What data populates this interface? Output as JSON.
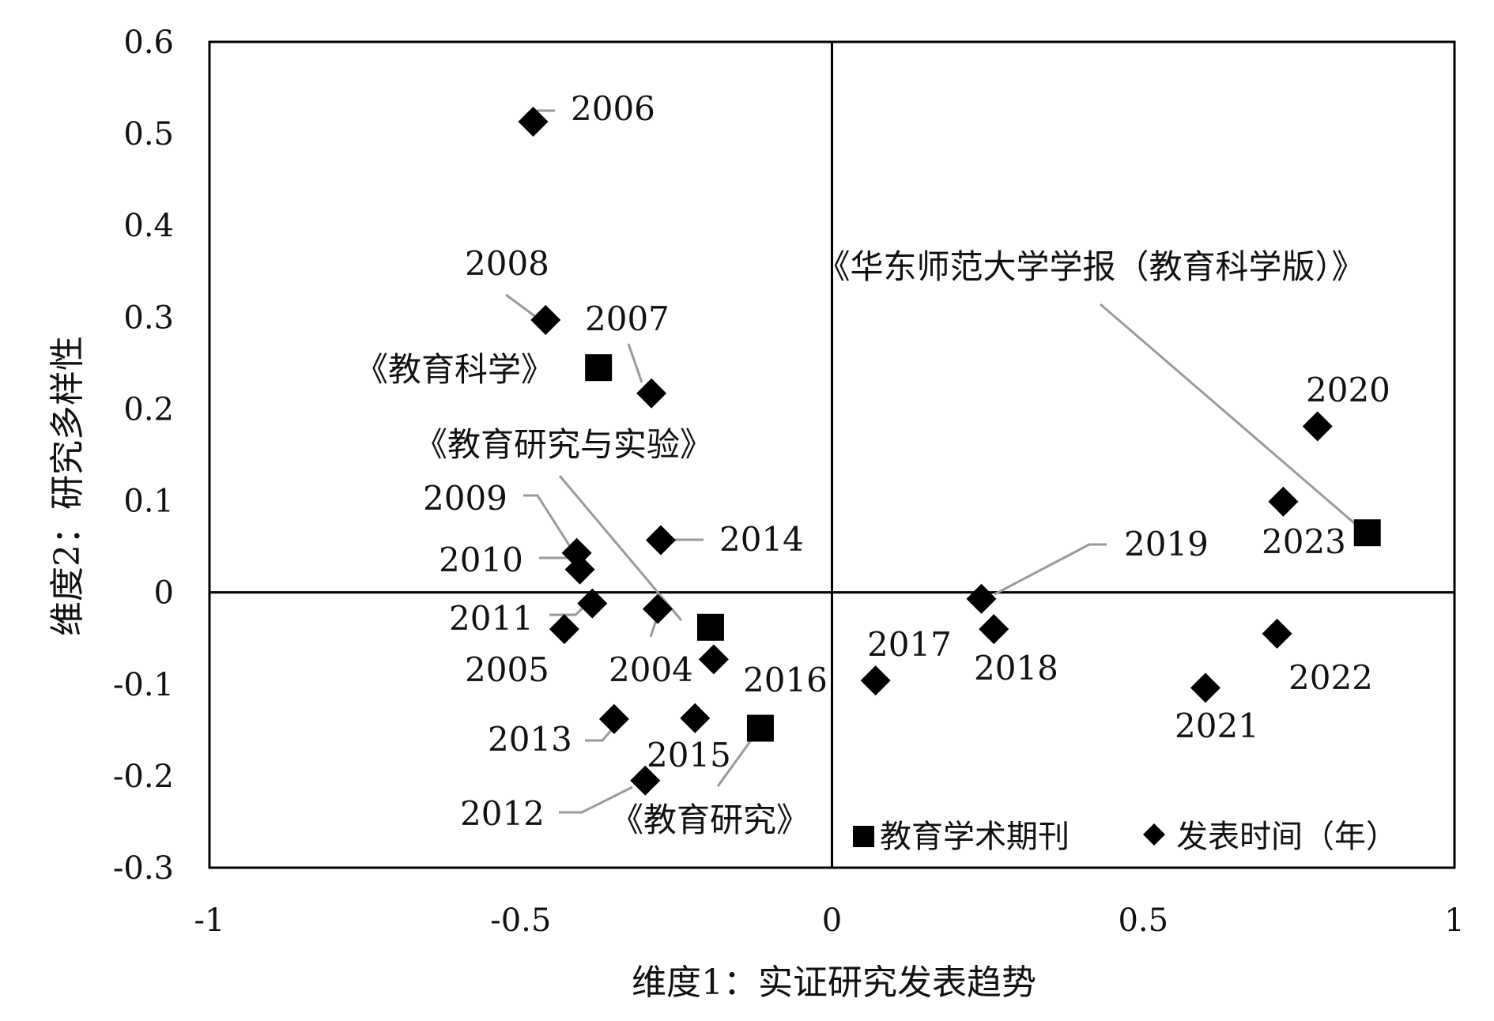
{
  "chart_data": {
    "type": "scatter",
    "xlabel": "维度1：实证研究发表趋势",
    "ylabel": "维度2：研究多样性",
    "xlim": [
      -1,
      1
    ],
    "ylim": [
      -0.3,
      0.6
    ],
    "x_ticks": [
      -1,
      -0.5,
      0,
      0.5,
      1
    ],
    "x_tick_labels": [
      "-1",
      "-0.5",
      "0",
      "0.5",
      "1"
    ],
    "y_ticks": [
      -0.3,
      -0.2,
      -0.1,
      0,
      0.1,
      0.2,
      0.3,
      0.4,
      0.5,
      0.6
    ],
    "y_tick_labels": [
      "-0.3",
      "-0.2",
      "-0.1",
      "0",
      "0.1",
      "0.2",
      "0.3",
      "0.4",
      "0.5",
      "0.6"
    ],
    "grid": false,
    "reference_lines": {
      "x": 0,
      "y": 0
    },
    "legend_placement": "bottom-right",
    "series": [
      {
        "name": "教育学术期刊",
        "marker": "square",
        "color": "#000000",
        "points": [
          {
            "label": "《华东师范大学学报（教育科学版）》",
            "x": 0.86,
            "y": 0.065
          },
          {
            "label": "《教育科学》",
            "x": -0.375,
            "y": 0.245
          },
          {
            "label": "《教育研究与实验》",
            "x": -0.195,
            "y": -0.038
          },
          {
            "label": "《教育研究》",
            "x": -0.115,
            "y": -0.148
          }
        ]
      },
      {
        "name": "发表时间（年）",
        "marker": "diamond",
        "color": "#000000",
        "points": [
          {
            "label": "2004",
            "x": -0.28,
            "y": -0.018
          },
          {
            "label": "2005",
            "x": -0.43,
            "y": -0.04
          },
          {
            "label": "2006",
            "x": -0.48,
            "y": 0.513
          },
          {
            "label": "2007",
            "x": -0.29,
            "y": 0.217
          },
          {
            "label": "2008",
            "x": -0.46,
            "y": 0.297
          },
          {
            "label": "2009",
            "x": -0.41,
            "y": 0.043
          },
          {
            "label": "2010",
            "x": -0.405,
            "y": 0.025
          },
          {
            "label": "2011",
            "x": -0.385,
            "y": -0.012
          },
          {
            "label": "2012",
            "x": -0.3,
            "y": -0.205
          },
          {
            "label": "2013",
            "x": -0.35,
            "y": -0.138
          },
          {
            "label": "2014",
            "x": -0.275,
            "y": 0.057
          },
          {
            "label": "2015",
            "x": -0.22,
            "y": -0.137
          },
          {
            "label": "2016",
            "x": -0.19,
            "y": -0.073
          },
          {
            "label": "2017",
            "x": 0.07,
            "y": -0.096
          },
          {
            "label": "2018",
            "x": 0.26,
            "y": -0.04
          },
          {
            "label": "2019",
            "x": 0.24,
            "y": -0.007
          },
          {
            "label": "2020",
            "x": 0.78,
            "y": 0.181
          },
          {
            "label": "2021",
            "x": 0.6,
            "y": -0.104
          },
          {
            "label": "2022",
            "x": 0.715,
            "y": -0.045
          },
          {
            "label": "2023",
            "x": 0.725,
            "y": 0.099
          }
        ]
      }
    ]
  }
}
